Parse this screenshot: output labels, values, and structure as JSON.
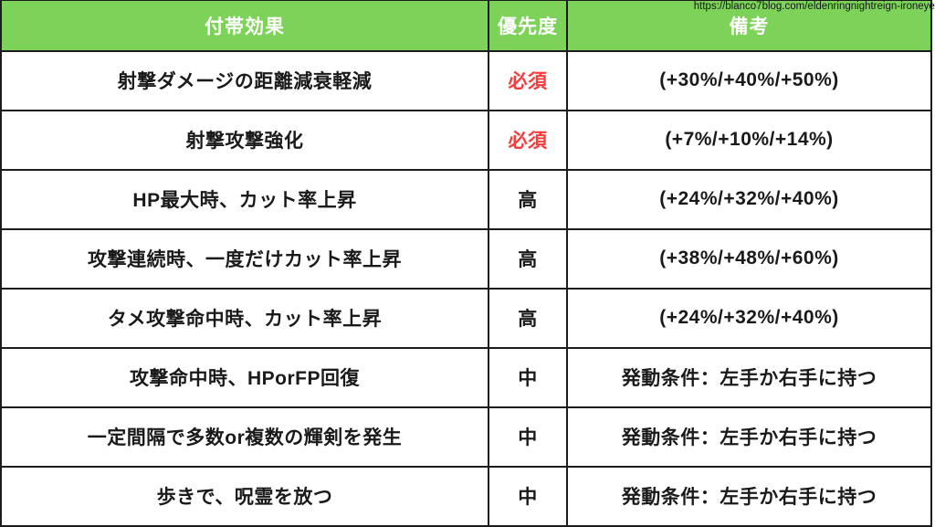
{
  "page": {
    "source_url": "https://blanco7blog.com/eldenringnightreign-ironeye/"
  },
  "colors": {
    "header_bg_green": "#7dd35a",
    "required_red": "#fc3a3a",
    "body_text": "#1a1a1a",
    "header_text": "#ffffff",
    "border": "#1c1c1c"
  },
  "table": {
    "headers": {
      "effect": "付帯効果",
      "priority": "優先度",
      "remarks": "備考"
    },
    "rows": [
      {
        "effect": "射撃ダメージの距離減衰軽減",
        "priority": "必須",
        "priority_level": "required",
        "remarks": "(+30%/+40%/+50%)"
      },
      {
        "effect": "射撃攻撃強化",
        "priority": "必須",
        "priority_level": "required",
        "remarks": "(+7%/+10%/+14%)"
      },
      {
        "effect": "HP最大時、カット率上昇",
        "priority": "高",
        "priority_level": "high",
        "remarks": "(+24%/+32%/+40%)"
      },
      {
        "effect": "攻撃連続時、一度だけカット率上昇",
        "priority": "高",
        "priority_level": "high",
        "remarks": "(+38%/+48%/+60%)"
      },
      {
        "effect": "タメ攻撃命中時、カット率上昇",
        "priority": "高",
        "priority_level": "high",
        "remarks": "(+24%/+32%/+40%)"
      },
      {
        "effect": "攻撃命中時、HPorFP回復",
        "priority": "中",
        "priority_level": "medium",
        "remarks": "発動条件：左手か右手に持つ"
      },
      {
        "effect": "一定間隔で多数or複数の輝剣を発生",
        "priority": "中",
        "priority_level": "medium",
        "remarks": "発動条件：左手か右手に持つ"
      },
      {
        "effect": "歩きで、呪霊を放つ",
        "priority": "中",
        "priority_level": "medium",
        "remarks": "発動条件：左手か右手に持つ"
      }
    ]
  }
}
